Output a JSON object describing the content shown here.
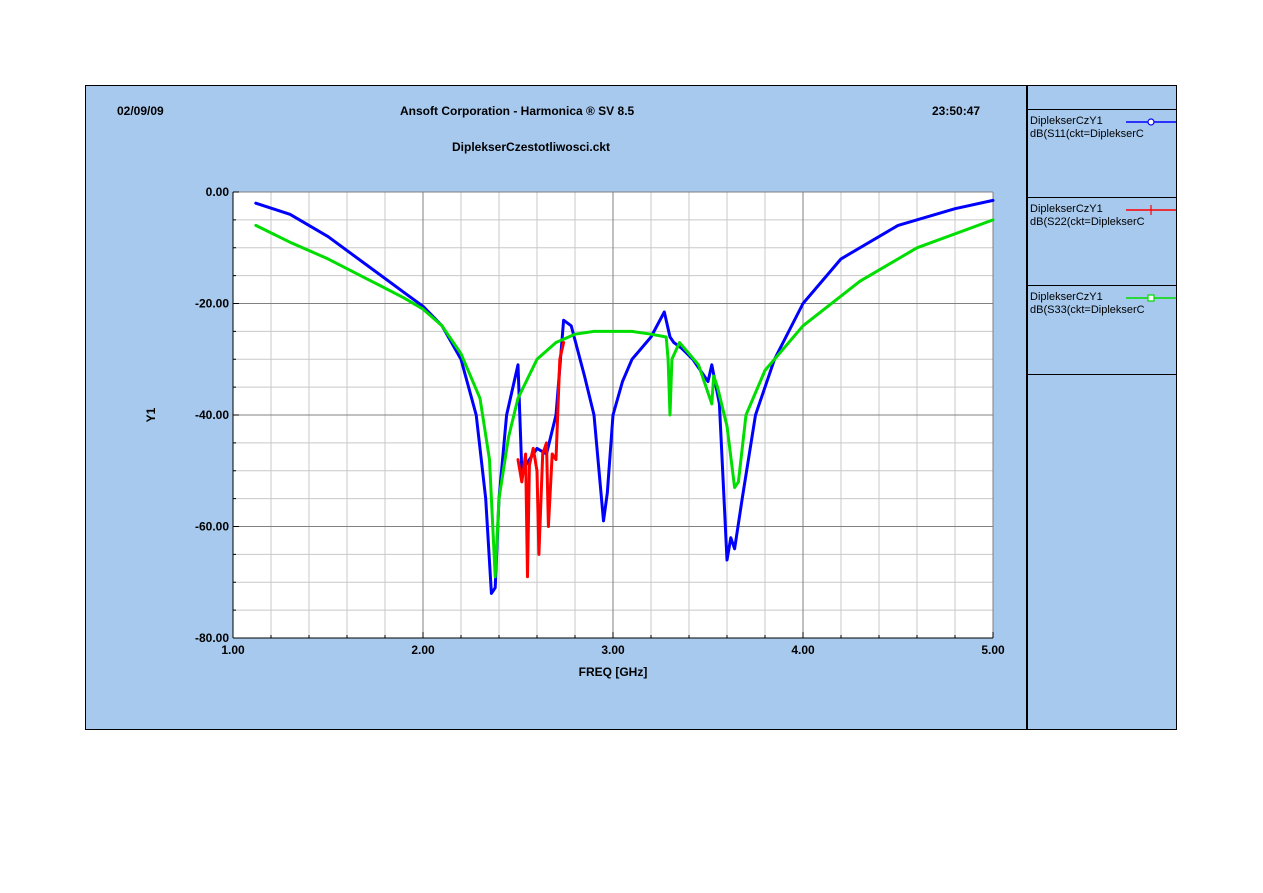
{
  "header": {
    "date": "02/09/09",
    "company": "Ansoft Corporation - Harmonica ® SV 8.5",
    "time": "23:50:47",
    "filename": "DiplekserCzestotliwosci.ckt"
  },
  "legend": [
    {
      "name": "DiplekserCzY1",
      "expr": "dB(S11(ckt=DiplekserC",
      "color": "#0000ff",
      "marker": "circle"
    },
    {
      "name": "DiplekserCzY1",
      "expr": "dB(S22(ckt=DiplekserC",
      "color": "#ff0000",
      "marker": "plus"
    },
    {
      "name": "DiplekserCzY1",
      "expr": "dB(S33(ckt=DiplekserC",
      "color": "#00dd00",
      "marker": "square"
    }
  ],
  "chart_data": {
    "type": "line",
    "title": "",
    "xlabel": "FREQ [GHz]",
    "ylabel": "Y1",
    "xlim": [
      1.0,
      5.0
    ],
    "ylim": [
      -80.0,
      0.0
    ],
    "x_ticks": [
      "1.00",
      "2.00",
      "3.00",
      "4.00",
      "5.00"
    ],
    "y_ticks": [
      "0.00",
      "-20.00",
      "-40.00",
      "-60.00",
      "-80.00"
    ],
    "grid": true,
    "series": [
      {
        "name": "dB(S11(ckt=DiplekserC",
        "color": "#0000ff",
        "x": [
          1.12,
          1.3,
          1.5,
          1.7,
          1.9,
          2.0,
          2.1,
          2.2,
          2.28,
          2.33,
          2.36,
          2.38,
          2.4,
          2.44,
          2.48,
          2.5,
          2.52,
          2.56,
          2.6,
          2.65,
          2.7,
          2.74,
          2.78,
          2.85,
          2.9,
          2.95,
          2.97,
          3.0,
          3.05,
          3.1,
          3.2,
          3.27,
          3.3,
          3.32,
          3.36,
          3.42,
          3.5,
          3.52,
          3.56,
          3.6,
          3.62,
          3.64,
          3.68,
          3.75,
          3.85,
          4.0,
          4.2,
          4.5,
          4.8,
          5.0
        ],
        "values": [
          -2,
          -4,
          -8,
          -13,
          -18,
          -20.5,
          -24,
          -30,
          -40,
          -55,
          -72,
          -71,
          -55,
          -40,
          -34,
          -31,
          -50,
          -48,
          -46,
          -47,
          -40,
          -23,
          -24,
          -33,
          -40,
          -59,
          -54,
          -40,
          -34,
          -30,
          -26,
          -21.5,
          -26,
          -27,
          -28,
          -30,
          -34,
          -31,
          -38,
          -66,
          -62,
          -64,
          -55,
          -40,
          -30,
          -20,
          -12,
          -6,
          -3,
          -1.5
        ]
      },
      {
        "name": "dB(S22(ckt=DiplekserC",
        "color": "#ff0000",
        "x": [
          2.5,
          2.52,
          2.54,
          2.55,
          2.56,
          2.58,
          2.6,
          2.61,
          2.63,
          2.65,
          2.66,
          2.68,
          2.7,
          2.72,
          2.74
        ],
        "values": [
          -48,
          -52,
          -47,
          -69,
          -49,
          -46,
          -50,
          -65,
          -47,
          -45,
          -60,
          -47,
          -48,
          -30,
          -27
        ]
      },
      {
        "name": "dB(S33(ckt=DiplekserC",
        "color": "#00dd00",
        "x": [
          1.12,
          1.3,
          1.5,
          1.7,
          1.9,
          2.0,
          2.1,
          2.2,
          2.3,
          2.35,
          2.38,
          2.4,
          2.45,
          2.5,
          2.6,
          2.7,
          2.8,
          2.9,
          3.0,
          3.1,
          3.2,
          3.28,
          3.29,
          3.3,
          3.31,
          3.35,
          3.45,
          3.52,
          3.53,
          3.55,
          3.6,
          3.64,
          3.66,
          3.7,
          3.8,
          4.0,
          4.3,
          4.6,
          5.0
        ],
        "values": [
          -6,
          -9,
          -12,
          -15.5,
          -19,
          -21,
          -24,
          -29,
          -37,
          -48,
          -69,
          -55,
          -44,
          -37,
          -30,
          -27,
          -25.5,
          -25,
          -25,
          -25,
          -25.5,
          -26,
          -30,
          -40,
          -30,
          -27,
          -31,
          -38,
          -33,
          -35,
          -42,
          -53,
          -52,
          -40,
          -32,
          -24,
          -16,
          -10,
          -5
        ]
      }
    ]
  }
}
